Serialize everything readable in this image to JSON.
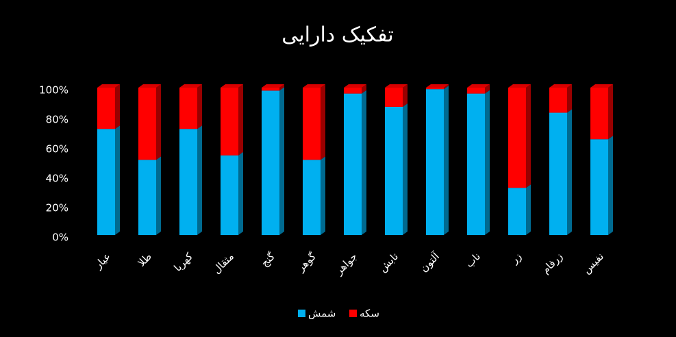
{
  "chart_data": {
    "type": "stacked_bar",
    "title": "تفکیک دارایی",
    "categories": [
      "عیار",
      "طلا",
      "کهربا",
      "مثقال",
      "گنج",
      "گوهر",
      "جواهر",
      "تابش",
      "آلتون",
      "ناب",
      "زر",
      "زرفام",
      "نفیس"
    ],
    "series": [
      {
        "name": "شمش",
        "color": "#00b0f0",
        "values": [
          72,
          51,
          72,
          54,
          98,
          51,
          96,
          87,
          99,
          96,
          32,
          83,
          65
        ]
      },
      {
        "name": "سکه",
        "color": "#ff0000",
        "values": [
          28,
          49,
          28,
          46,
          2,
          49,
          4,
          13,
          1,
          4,
          68,
          17,
          35
        ]
      }
    ],
    "ylim": [
      0,
      100
    ],
    "yticks": [
      {
        "value": 0,
        "label": "0%"
      },
      {
        "value": 20,
        "label": "20%"
      },
      {
        "value": 40,
        "label": "40%"
      },
      {
        "value": 60,
        "label": "60%"
      },
      {
        "value": 80,
        "label": "80%"
      },
      {
        "value": 100,
        "label": "100%"
      }
    ],
    "grid": false,
    "legend": "bottom"
  }
}
